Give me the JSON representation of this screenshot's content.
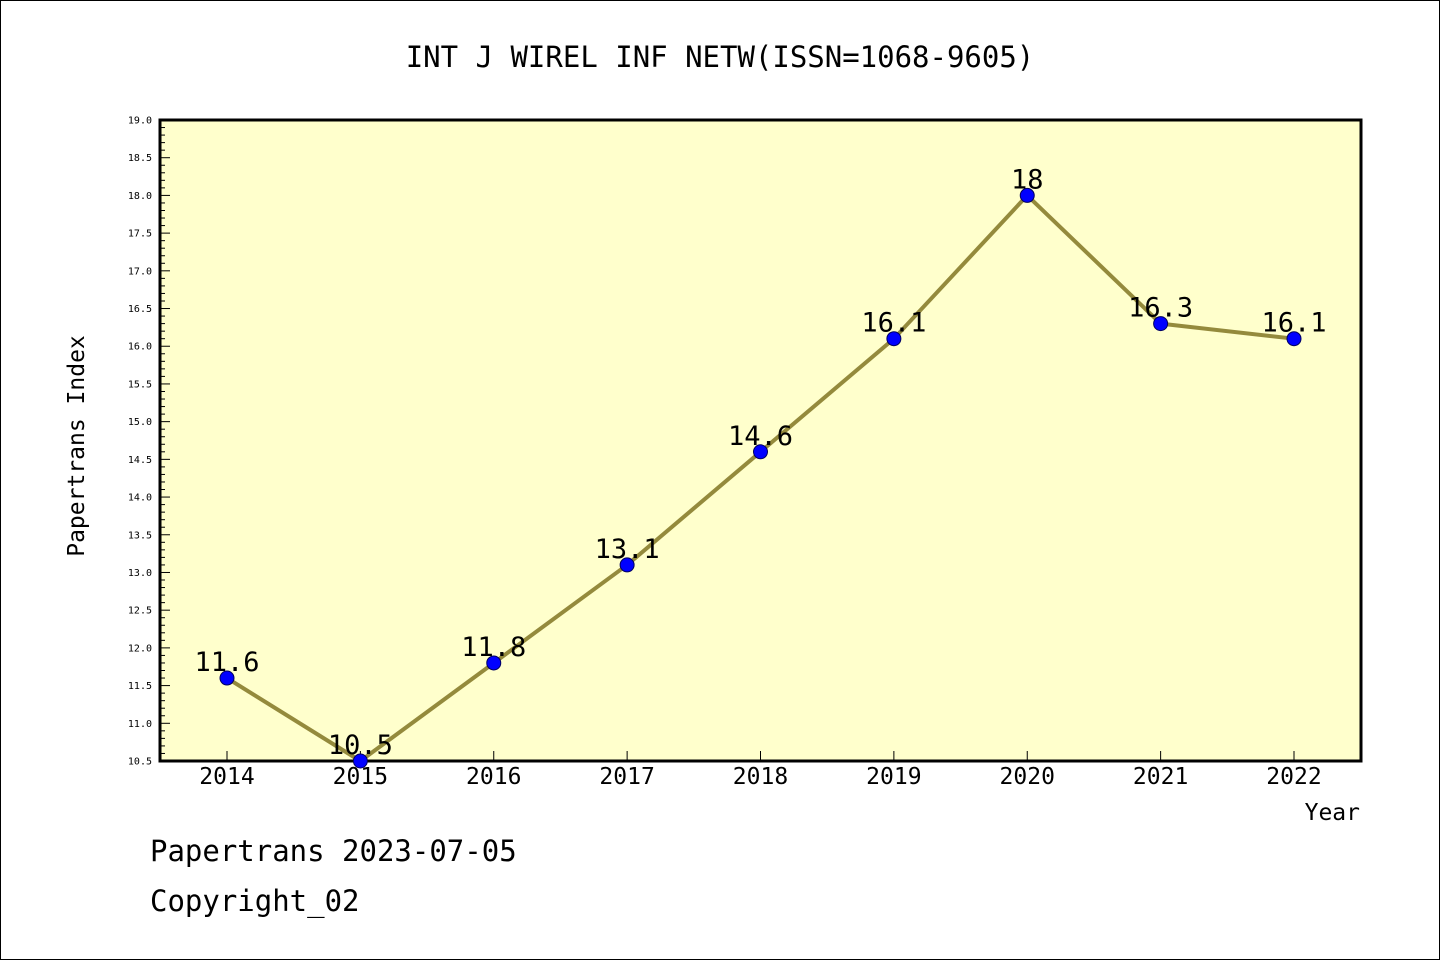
{
  "colors": {
    "background": "#ffffff",
    "plot_background": "#ffffcc",
    "line": "#948a3c",
    "marker": "#0000ff",
    "axis": "#000000"
  },
  "footer": {
    "date_label": "Papertrans 2023-07-05",
    "copyright": "Copyright_02"
  },
  "chart_data": {
    "type": "line",
    "title": "INT J WIREL INF NETW(ISSN=1068-9605)",
    "xlabel": "Year",
    "ylabel": "Papertrans Index",
    "categories": [
      "2014",
      "2015",
      "2016",
      "2017",
      "2018",
      "2019",
      "2020",
      "2021",
      "2022"
    ],
    "series": [
      {
        "values": [
          11.6,
          10.5,
          11.8,
          13.1,
          14.6,
          16.1,
          18,
          16.3,
          16.1
        ],
        "labels": [
          "11.6",
          "10.5",
          "11.8",
          "13.1",
          "14.6",
          "16.1",
          "18",
          "16.3",
          "16.1"
        ]
      }
    ],
    "ylim": [
      10.5,
      19.0
    ],
    "yticks": [
      "10.5",
      "11.0",
      "11.5",
      "12.0",
      "12.5",
      "13.0",
      "13.5",
      "14.0",
      "14.5",
      "15.0",
      "15.5",
      "16.0",
      "16.5",
      "17.0",
      "17.5",
      "18.0",
      "18.5",
      "19.0"
    ],
    "grid": false,
    "legend": "none"
  }
}
